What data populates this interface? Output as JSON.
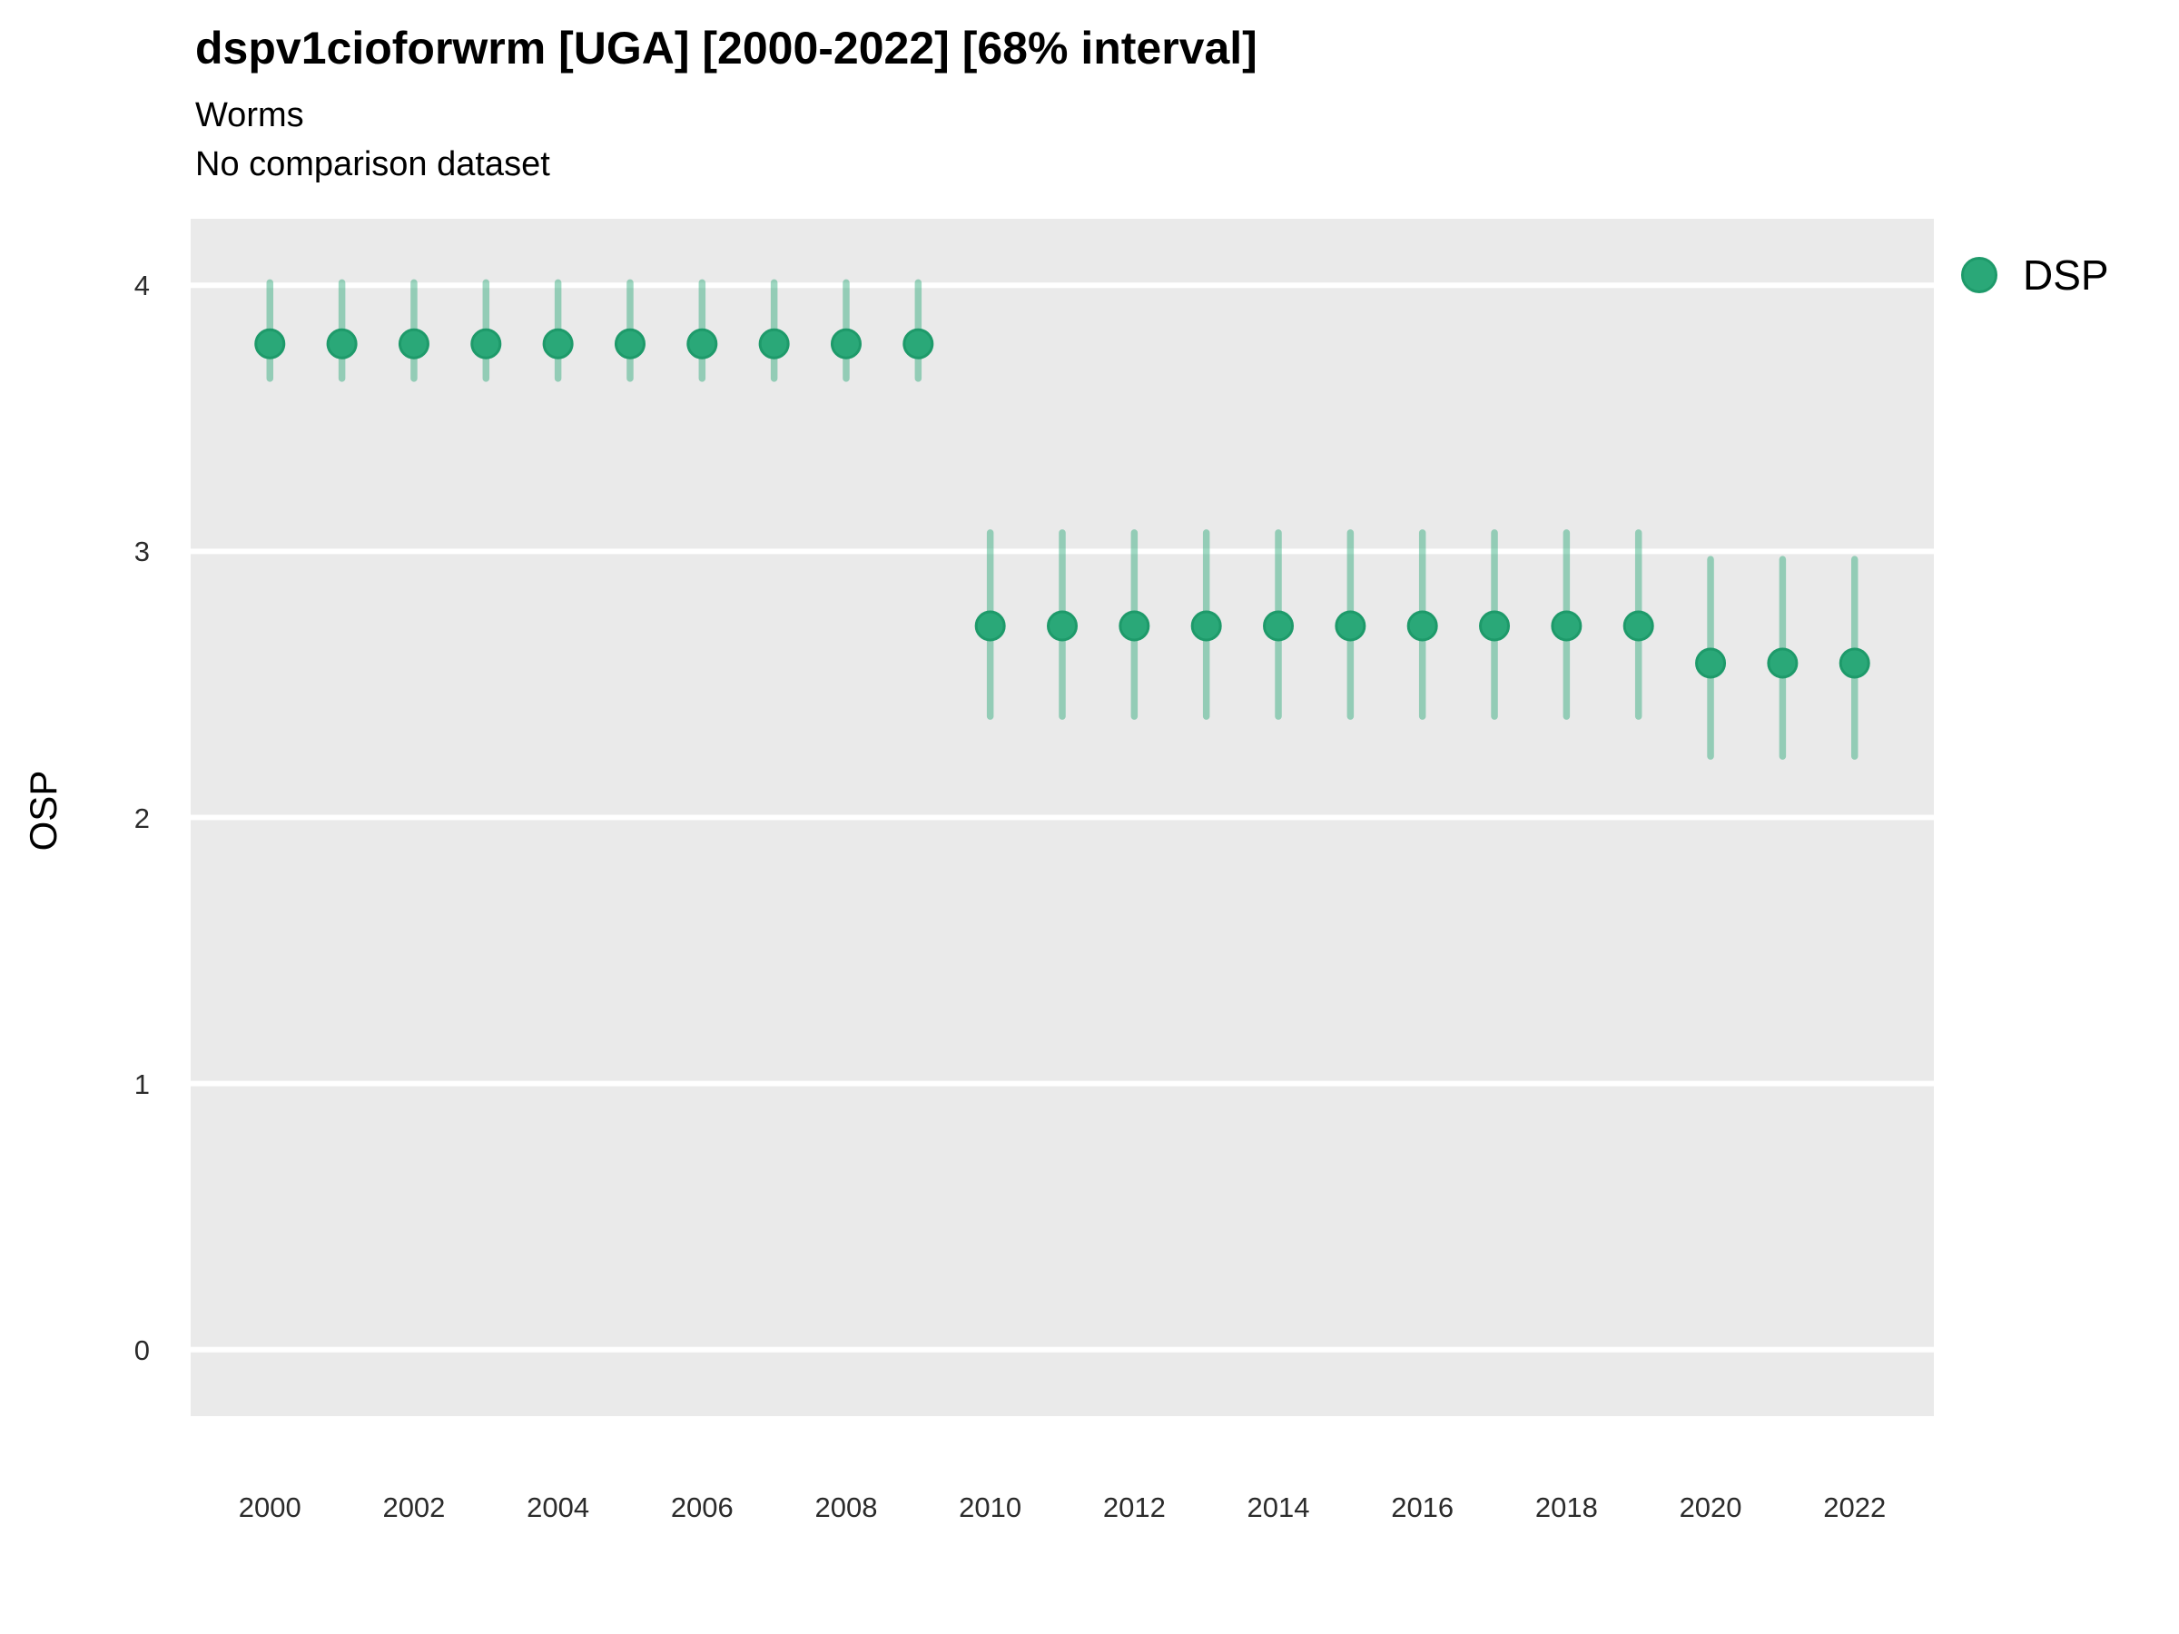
{
  "header": {
    "title": "dspv1cioforwrm [UGA] [2000-2022] [68% interval]",
    "subtitle": "Worms",
    "note": "No comparison dataset"
  },
  "legend": {
    "items": [
      {
        "label": "DSP",
        "color": "#2aa878",
        "stroke": "#1e9a6a"
      }
    ]
  },
  "chart_data": {
    "type": "scatter",
    "title": "dspv1cioforwrm [UGA] [2000-2022] [68% interval]",
    "subtitle": "Worms",
    "annotation": "No comparison dataset",
    "interval_label": "68% interval",
    "xlabel": "",
    "ylabel": "OSP",
    "legend_position": "right",
    "grid": "major-horizontal-only",
    "panel_background": "#eaeaea",
    "gridline_color": "#ffffff",
    "point_color": "#2aa878",
    "point_stroke_color": "#1e9a6a",
    "interval_color": "rgba(42,168,120,0.45)",
    "xlim": [
      1998.9,
      2023.1
    ],
    "ylim": [
      -0.25,
      4.25
    ],
    "x_ticks": [
      2000,
      2002,
      2004,
      2006,
      2008,
      2010,
      2012,
      2014,
      2016,
      2018,
      2020,
      2022
    ],
    "y_ticks": [
      0,
      1,
      2,
      3,
      4
    ],
    "series": [
      {
        "name": "DSP",
        "x": [
          2000,
          2001,
          2002,
          2003,
          2004,
          2005,
          2006,
          2007,
          2008,
          2009,
          2010,
          2011,
          2012,
          2013,
          2014,
          2015,
          2016,
          2017,
          2018,
          2019,
          2020,
          2021,
          2022
        ],
        "y": [
          3.78,
          3.78,
          3.78,
          3.78,
          3.78,
          3.78,
          3.78,
          3.78,
          3.78,
          3.78,
          2.72,
          2.72,
          2.72,
          2.72,
          2.72,
          2.72,
          2.72,
          2.72,
          2.72,
          2.72,
          2.58,
          2.58,
          2.58
        ],
        "lo": [
          3.65,
          3.65,
          3.65,
          3.65,
          3.65,
          3.65,
          3.65,
          3.65,
          3.65,
          3.65,
          2.38,
          2.38,
          2.38,
          2.38,
          2.38,
          2.38,
          2.38,
          2.38,
          2.38,
          2.38,
          2.23,
          2.23,
          2.23
        ],
        "hi": [
          4.01,
          4.01,
          4.01,
          4.01,
          4.01,
          4.01,
          4.01,
          4.01,
          4.01,
          4.01,
          3.07,
          3.07,
          3.07,
          3.07,
          3.07,
          3.07,
          3.07,
          3.07,
          3.07,
          3.07,
          2.97,
          2.97,
          2.97
        ]
      }
    ]
  }
}
